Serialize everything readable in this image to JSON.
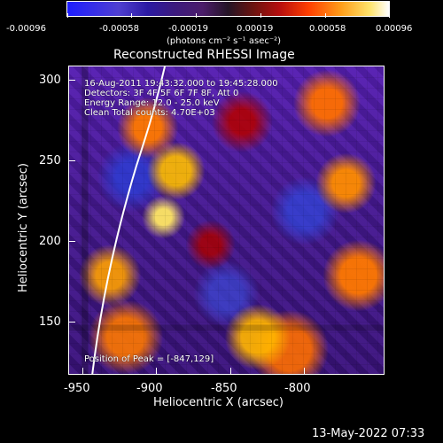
{
  "colorbar": {
    "ticks": [
      "-0.00096",
      "-0.00058",
      "-0.00019",
      "0.00019",
      "0.00058",
      "0.00096"
    ],
    "unit_label": "(photons cm⁻² s⁻¹ asec⁻²)"
  },
  "plot": {
    "title": "Reconstructed RHESSI Image",
    "info_lines": [
      "16-Aug-2011 19:43:32.000 to 19:45:28.000",
      "Detectors: 3F 4F 5F 6F 7F 8F, Att 0",
      "Energy Range: 12.0 - 25.0 keV",
      "Clean     Total counts: 4.70E+03"
    ],
    "peak_label": "Position of Peak = [-847,129]",
    "x_axis_label": "Heliocentric X (arcsec)",
    "y_axis_label": "Heliocentric Y (arcsec)",
    "x_ticks": [
      "-950",
      "-900",
      "-850",
      "-800"
    ],
    "y_ticks": [
      "300",
      "250",
      "200",
      "150"
    ]
  },
  "footer": {
    "timestamp": "13-May-2022 07:33"
  }
}
